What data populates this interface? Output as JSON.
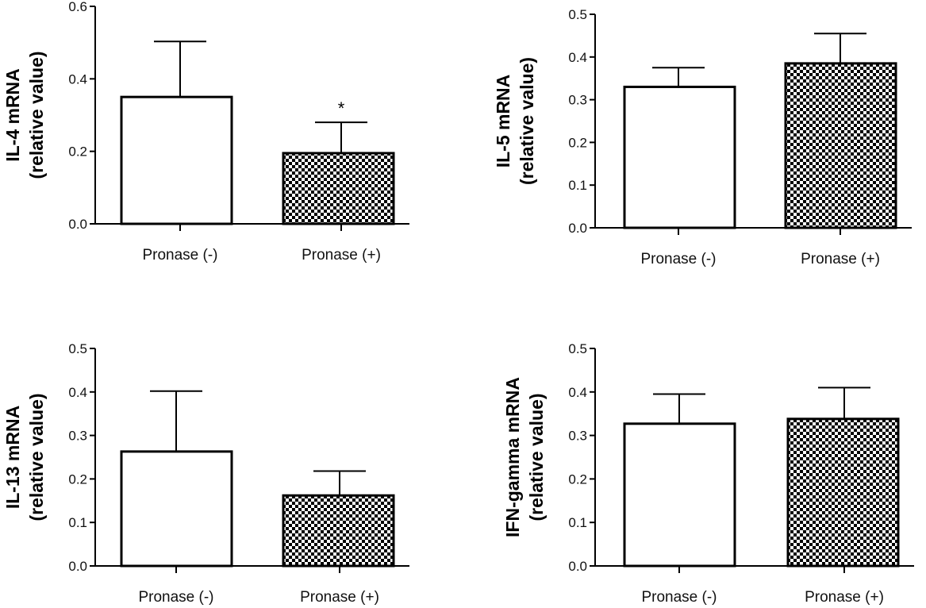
{
  "chart_data": [
    {
      "type": "bar",
      "categories": [
        "Pronase (-)",
        "Pronase (+)"
      ],
      "values": [
        0.35,
        0.195
      ],
      "error": [
        0.153,
        0.085
      ],
      "patterns": [
        "open",
        "checkered"
      ],
      "ylabel_lines": [
        "IL-4 mRNA",
        "(relative value)"
      ],
      "ylim": [
        0,
        0.6
      ],
      "yticks": [
        "0.0",
        "0.2",
        "0.4",
        "0.6"
      ],
      "annotations": [
        {
          "category": "Pronase (+)",
          "text": "*"
        }
      ]
    },
    {
      "type": "bar",
      "categories": [
        "Pronase (-)",
        "Pronase (+)"
      ],
      "values": [
        0.33,
        0.385
      ],
      "error": [
        0.045,
        0.07
      ],
      "patterns": [
        "open",
        "checkered"
      ],
      "ylabel_lines": [
        "IL-5 mRNA",
        "(relative value)"
      ],
      "ylim": [
        0,
        0.5
      ],
      "yticks": [
        "0.0",
        "0.1",
        "0.2",
        "0.3",
        "0.4",
        "0.5"
      ],
      "annotations": []
    },
    {
      "type": "bar",
      "categories": [
        "Pronase (-)",
        "Pronase (+)"
      ],
      "values": [
        0.263,
        0.162
      ],
      "error": [
        0.139,
        0.056
      ],
      "patterns": [
        "open",
        "checkered"
      ],
      "ylabel_lines": [
        "IL-13 mRNA",
        "(relative value)"
      ],
      "ylim": [
        0,
        0.5
      ],
      "yticks": [
        "0.0",
        "0.1",
        "0.2",
        "0.3",
        "0.4",
        "0.5"
      ],
      "annotations": []
    },
    {
      "type": "bar",
      "categories": [
        "Pronase (-)",
        "Pronase (+)"
      ],
      "values": [
        0.327,
        0.338
      ],
      "error": [
        0.068,
        0.072
      ],
      "patterns": [
        "open",
        "checkered"
      ],
      "ylabel_lines": [
        "IFN-gamma mRNA",
        "(relative value)"
      ],
      "ylim": [
        0,
        0.5
      ],
      "yticks": [
        "0.0",
        "0.1",
        "0.2",
        "0.3",
        "0.4",
        "0.5"
      ],
      "annotations": []
    }
  ]
}
